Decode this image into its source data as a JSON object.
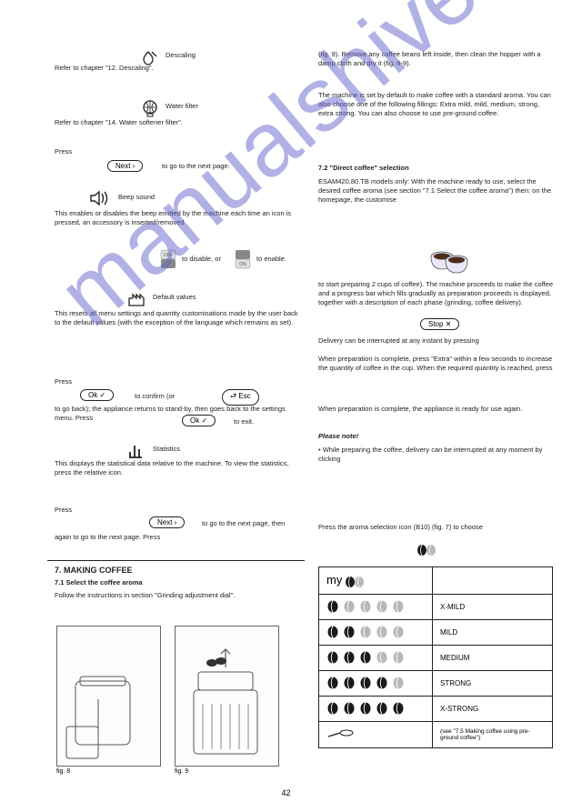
{
  "watermark": "manualshive.com",
  "pageNumber": "42",
  "buttons": {
    "next": "Next ›",
    "ok": "Ok ✓",
    "esc": "⮐ Esc",
    "stop": "Stop ✕",
    "off": "OFF",
    "on": "ON"
  },
  "leftColumn": {
    "descaling": {
      "label": "Descaling",
      "text": "Refer to chapter \"12. Descaling\"."
    },
    "filter": {
      "label": "Water filter",
      "text": "Refer to chapter \"14. Water softener filter\"."
    },
    "nextNote": "to go to the next page:",
    "beep": {
      "label": "Beep sound",
      "text1": "This enables or disables the beep emitted by the machine each time an icon is pressed, an accessory is inserted/removed",
      "text2": "to disable, or",
      "text3": "to enable."
    },
    "defaults": {
      "label": "Default values",
      "text1": "This resets all menu settings and quantity customisations made by the user back to the default values (with the exception of the language which remains as set).",
      "confirm": "to confirm (or",
      "goback": "to go back); the appliance returns to stand-by, then goes back to the settings menu. Press",
      "exit": "to exit."
    },
    "stats": {
      "label": "Statistics",
      "text1": "This displays the statistical data relative to the machine. To view the statistics, press the relative icon.",
      "pressNext": "Press",
      "toNext1": "to go to the next page, then",
      "toNext2": "again to go to the next page. Press",
      "toExit": "to exit."
    },
    "making": {
      "title": "7. MAKING COFFEE",
      "sub": "7.1 Select the coffee aroma",
      "text": "Follow the instructions in section \"Grinding adjustment dial\".",
      "fig8": "fig. 8",
      "fig9": "fig. 9"
    }
  },
  "rightColumn": {
    "fig9text": "(fig. 9). Remove any coffee beans left inside, then clean the hopper with a damp cloth and dry it (fig. 8-9).",
    "quantities": "The machine is set by default to make coffee with a standard aroma. You can also choose one of the following\nfillings: Extra mild, mild, medium, strong, extra strong. You can also choose to use pre-ground coffee.",
    "direct": {
      "title": "7.2 \"Direct coffee\" selection",
      "text1": "ESAM420.80.TB models only: With the machine ready to use, select the desired coffee aroma (see section \"7.1 Select the coffee aroma\") then: on the homepage, the customise",
      "text2": "to start preparing 2 cups of coffee). The machine proceeds to make the coffee and a progress bar which fills gradually as preparation proceeds is displayed, together with a description of each phase (grinding, coffee delivery).",
      "text3": "Delivery can be interrupted at any instant by pressing",
      "text4": "When preparation is complete, press \"Extra\" within a few seconds to increase the quantity of coffee in the cup. When the required quantity is reached, press",
      "text5": "When preparation is complete, the appliance is ready for use again.",
      "plB": "Please note!",
      "plBtext": "• While preparing the coffee, delivery can be interrupted at any moment by clicking"
    },
    "strength": {
      "title": "7.1 Select the coffee aroma",
      "intro": "Press the aroma selection icon\n(B10) (fig. 7) to choose",
      "my": "my",
      "strengths": [
        "X-MILD",
        "MILD",
        "MEDIUM",
        "STRONG",
        "X-STRONG"
      ],
      "ground": "(see \"7.5 Making coffee using pre-ground coffee\")"
    }
  },
  "colors": {
    "text": "#222222",
    "watermark": "#6666cc",
    "beanDark": "#1a1a1a",
    "beanLight": "#b8b8b8",
    "border": "#222222"
  }
}
